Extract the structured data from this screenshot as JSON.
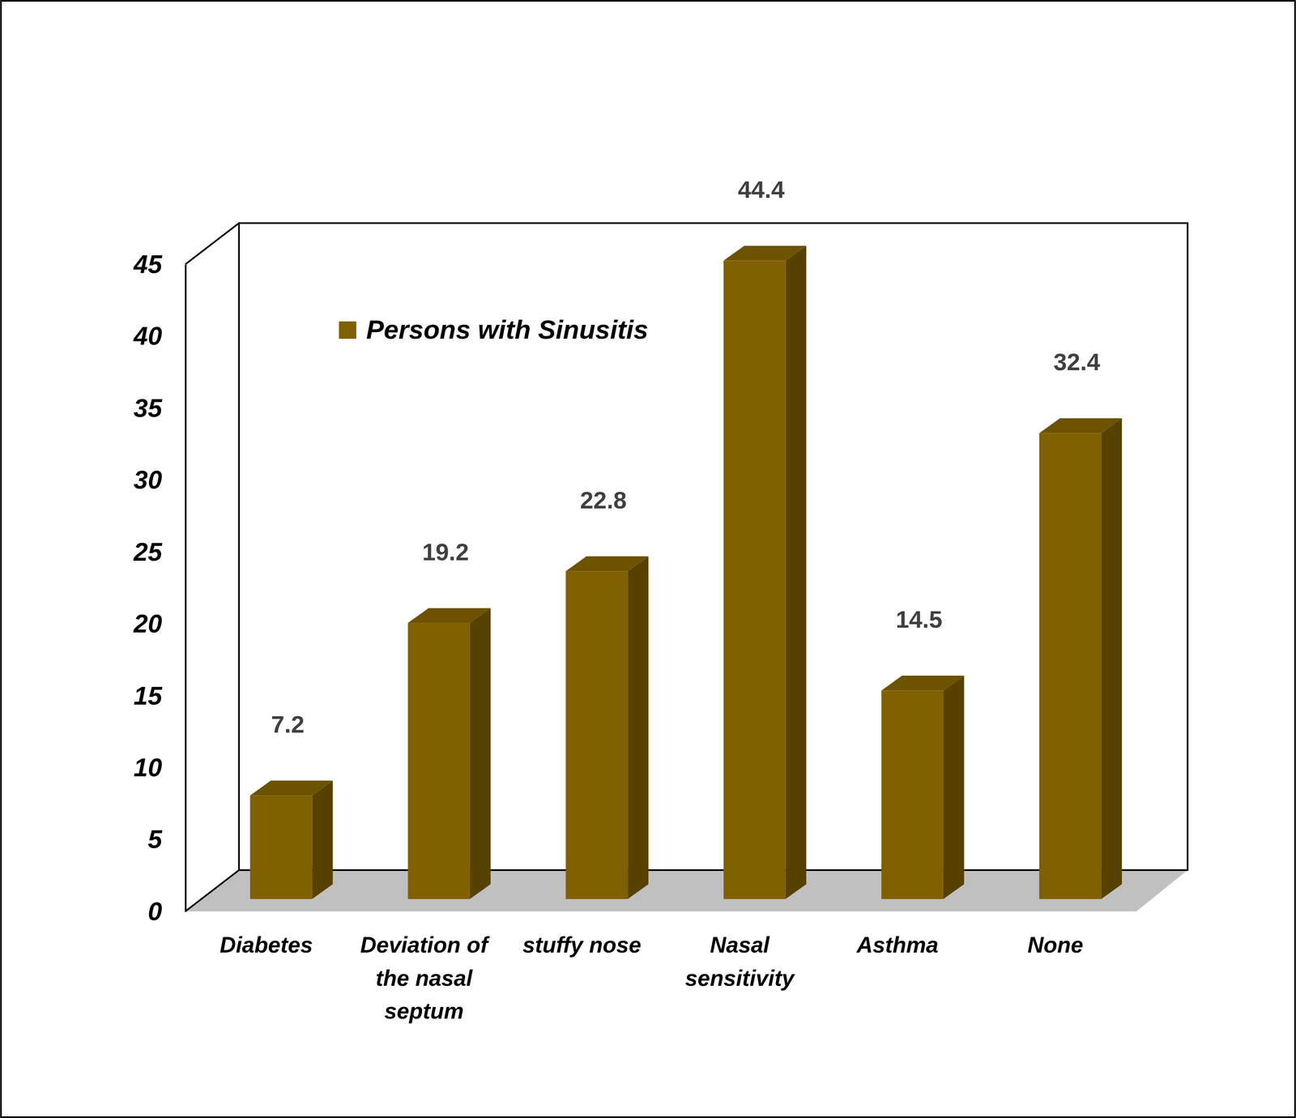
{
  "chart_data": {
    "type": "bar",
    "categories": [
      "Diabetes",
      "Deviation of the nasal septum",
      "stuffy nose",
      "Nasal sensitivity",
      "Asthma",
      "None"
    ],
    "series": [
      {
        "name": "Persons with Sinusitis",
        "color": "#806000",
        "values": [
          7.2,
          19.2,
          22.8,
          44.4,
          14.5,
          32.4
        ]
      }
    ],
    "ylim": [
      0,
      45
    ],
    "yticks": [
      0,
      5,
      10,
      15,
      20,
      25,
      30,
      35,
      40,
      45
    ],
    "grid": false,
    "legend": "upper left",
    "data_labels": true
  }
}
